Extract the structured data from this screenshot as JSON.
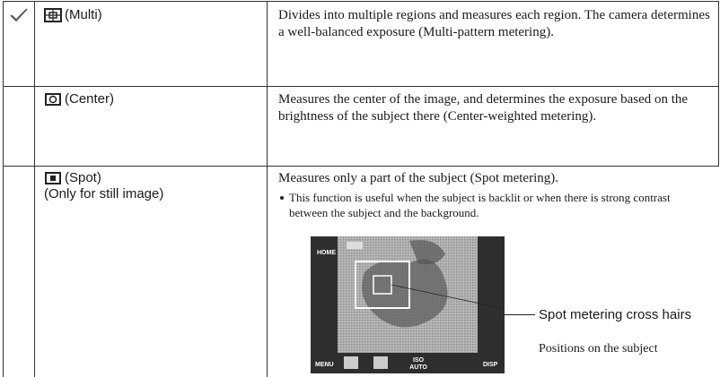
{
  "table": {
    "rows": [
      {
        "mode": "(Multi)",
        "description": "Divides into multiple regions and measures each region. The camera determines a well-balanced exposure (Multi-pattern metering)."
      },
      {
        "mode": "(Center)",
        "description": "Measures the center of the image, and determines the exposure based on the brightness of the subject there (Center-weighted metering)."
      },
      {
        "mode": "(Spot)",
        "note": "(Only for still image)",
        "description": "Measures only a part of the subject (Spot metering).",
        "bullet": "This function is useful when the subject is backlit or when there is strong contrast between the subject and the background.",
        "screen": [
          "HOME",
          "MENU",
          "ISO",
          "AUTO",
          "DISP"
        ],
        "callout": {
          "title": "Spot metering cross hairs",
          "detail": "Positions on the subject"
        }
      }
    ]
  }
}
